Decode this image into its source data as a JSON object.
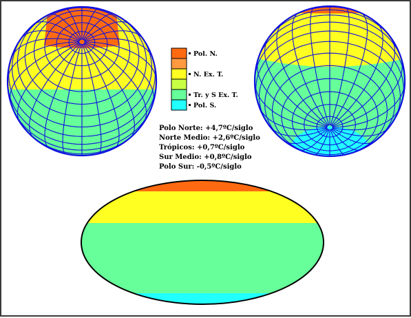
{
  "colors": {
    "pole_north": "#ff6a10",
    "north_ext": "#ffff22",
    "tropics": "#66ff99",
    "pole_south": "#22ffff",
    "grid": "#1010e0",
    "outline": "#000000"
  },
  "legend": [
    {
      "label": "Pol. N.",
      "color": "#ff6a10"
    },
    {
      "label": "",
      "color": "#ff9a40"
    },
    {
      "label": "N. Ex. T.",
      "color": "#ffff22"
    },
    {
      "label": "",
      "color": "#c8ff44"
    },
    {
      "label": "Tr. y S Ex. T.",
      "color": "#66ff99"
    },
    {
      "label": "Pol. S.",
      "color": "#22ffff"
    }
  ],
  "stats": [
    "Polo Norte: +4,7ºC/siglo",
    "Norte Medio: +2,6ºC/siglo",
    "Trópicos: +0,7ºC/siglo",
    "Sur Medio: +0,8ºC/siglo",
    "Polo Sur: -0,5ºC/siglo"
  ]
}
